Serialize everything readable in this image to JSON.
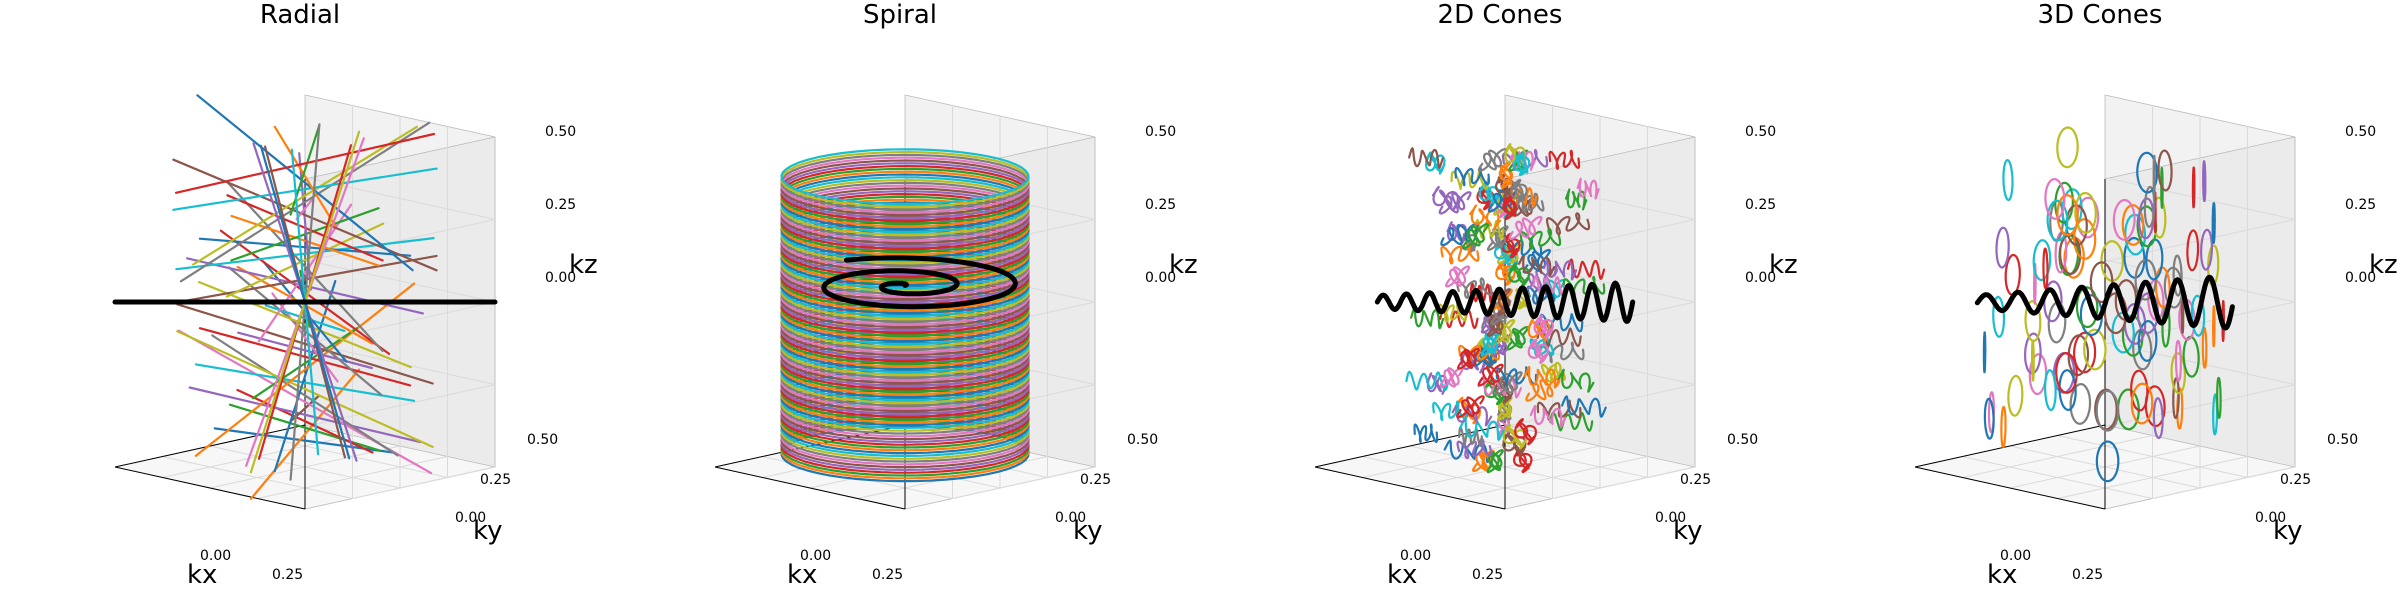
{
  "chart_data": [
    {
      "type": "line",
      "projection": "3d",
      "title": "Radial",
      "xlabel": "kx",
      "ylabel": "ky",
      "zlabel": "kz",
      "xlim": [
        -0.5,
        0.5
      ],
      "ylim": [
        -0.5,
        0.5
      ],
      "zlim": [
        -0.5,
        0.5
      ],
      "x_ticks": [
        "0.00",
        "0.25"
      ],
      "y_ticks": [
        "0.00",
        "0.25",
        "0.50"
      ],
      "z_ticks": [
        "0.00",
        "0.25",
        "0.50"
      ],
      "trajectory": "radial",
      "highlight_color": "#000000",
      "series_count": 44
    },
    {
      "type": "line",
      "projection": "3d",
      "title": "Spiral",
      "xlabel": "kx",
      "ylabel": "ky",
      "zlabel": "kz",
      "xlim": [
        -0.5,
        0.5
      ],
      "ylim": [
        -0.5,
        0.5
      ],
      "zlim": [
        -0.5,
        0.5
      ],
      "x_ticks": [
        "0.00",
        "0.25"
      ],
      "y_ticks": [
        "0.00",
        "0.25",
        "0.50"
      ],
      "z_ticks": [
        "0.00",
        "0.25",
        "0.50"
      ],
      "trajectory": "spiral",
      "highlight_color": "#000000",
      "series_count": 100
    },
    {
      "type": "line",
      "projection": "3d",
      "title": "2D Cones",
      "xlabel": "kx",
      "ylabel": "ky",
      "zlabel": "kz",
      "xlim": [
        -0.5,
        0.5
      ],
      "ylim": [
        -0.5,
        0.5
      ],
      "zlim": [
        -0.5,
        0.5
      ],
      "x_ticks": [
        "0.00",
        "0.25"
      ],
      "y_ticks": [
        "0.00",
        "0.25",
        "0.50"
      ],
      "z_ticks": [
        "0.00",
        "0.25",
        "0.50"
      ],
      "trajectory": "cones2d",
      "highlight_color": "#000000",
      "series_count": 120
    },
    {
      "type": "line",
      "projection": "3d",
      "title": "3D Cones",
      "xlabel": "kx",
      "ylabel": "ky",
      "zlabel": "kz",
      "xlim": [
        -0.5,
        0.5
      ],
      "ylim": [
        -0.5,
        0.5
      ],
      "zlim": [
        -0.5,
        0.5
      ],
      "x_ticks": [
        "0.00",
        "0.25"
      ],
      "y_ticks": [
        "0.00",
        "0.25",
        "0.50"
      ],
      "z_ticks": [
        "0.00",
        "0.25",
        "0.50"
      ],
      "trajectory": "cones3d",
      "highlight_color": "#000000",
      "series_count": 100
    }
  ],
  "palette": [
    "#1f77b4",
    "#ff7f0e",
    "#2ca02c",
    "#d62728",
    "#9467bd",
    "#8c564b",
    "#e377c2",
    "#7f7f7f",
    "#bcbd22",
    "#17becf"
  ],
  "pane_colors": {
    "left": "#f2f2f2",
    "right": "#ebebeb",
    "floor": "#f7f7f7",
    "grid": "#dadada",
    "edge": "#bcbcbc"
  }
}
